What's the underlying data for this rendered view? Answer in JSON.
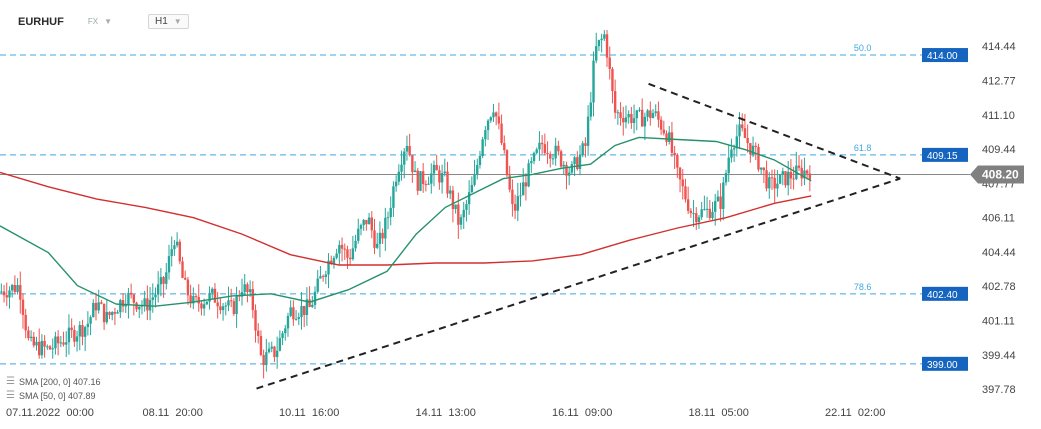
{
  "header": {
    "symbol": "EURHUF",
    "market": "FX",
    "timeframe": "H1"
  },
  "legend": {
    "sma200": "SMA [200, 0] 407.16",
    "sma50": "SMA [50, 0] 407.89"
  },
  "colors": {
    "bull": "#26a69a",
    "bear": "#ef5350",
    "sma200": "#d32f2f",
    "sma50": "#26926b",
    "fib": "#3fa9e0",
    "tag": "#1565c0",
    "current": "#808080"
  },
  "chart_data": {
    "type": "candlestick",
    "ylim": [
      397.0,
      415.8
    ],
    "y_ticks": [
      "414.44",
      "412.77",
      "411.10",
      "409.44",
      "407.77",
      "406.11",
      "404.44",
      "402.78",
      "401.11",
      "399.44",
      "397.78"
    ],
    "x_ticks": [
      "07.11.2022  00:00",
      "08.11  20:00",
      "10.11  16:00",
      "14.11  13:00",
      "16.11  09:00",
      "18.11  05:00",
      "22.11  02:00"
    ],
    "current_price": "408.20",
    "fib_levels": [
      {
        "ratio": "50.0",
        "value": 414.0,
        "label": "414.00"
      },
      {
        "ratio": "61.8",
        "value": 409.15,
        "label": "409.15"
      },
      {
        "ratio": "78.6",
        "value": 402.4,
        "label": "402.40"
      },
      {
        "ratio": "",
        "value": 399.0,
        "label": "399.00"
      }
    ],
    "triangle": {
      "lower": [
        [
          0.265,
          397.8
        ],
        [
          0.93,
          408.0
        ]
      ],
      "upper": [
        [
          0.67,
          412.6
        ],
        [
          0.93,
          408.0
        ]
      ]
    },
    "price_path": [
      [
        0.0,
        402.5
      ],
      [
        0.02,
        402.8
      ],
      [
        0.03,
        399.9
      ],
      [
        0.05,
        399.7
      ],
      [
        0.07,
        400.3
      ],
      [
        0.09,
        400.9
      ],
      [
        0.1,
        402.0
      ],
      [
        0.11,
        401.2
      ],
      [
        0.13,
        402.3
      ],
      [
        0.15,
        401.8
      ],
      [
        0.17,
        403.0
      ],
      [
        0.18,
        405.2
      ],
      [
        0.19,
        402.8
      ],
      [
        0.2,
        401.9
      ],
      [
        0.22,
        402.3
      ],
      [
        0.24,
        401.6
      ],
      [
        0.25,
        402.8
      ],
      [
        0.26,
        402.1
      ],
      [
        0.27,
        399.2
      ],
      [
        0.285,
        399.6
      ],
      [
        0.3,
        401.6
      ],
      [
        0.32,
        401.7
      ],
      [
        0.335,
        403.6
      ],
      [
        0.35,
        404.9
      ],
      [
        0.36,
        404.1
      ],
      [
        0.37,
        405.3
      ],
      [
        0.38,
        406.1
      ],
      [
        0.39,
        404.6
      ],
      [
        0.4,
        406.0
      ],
      [
        0.41,
        408.4
      ],
      [
        0.42,
        409.9
      ],
      [
        0.43,
        407.8
      ],
      [
        0.45,
        408.3
      ],
      [
        0.46,
        407.9
      ],
      [
        0.475,
        405.7
      ],
      [
        0.49,
        407.9
      ],
      [
        0.5,
        410.5
      ],
      [
        0.51,
        411.6
      ],
      [
        0.52,
        409.3
      ],
      [
        0.53,
        406.3
      ],
      [
        0.545,
        408.2
      ],
      [
        0.56,
        409.7
      ],
      [
        0.575,
        409.2
      ],
      [
        0.59,
        408.3
      ],
      [
        0.605,
        409.6
      ],
      [
        0.615,
        414.2
      ],
      [
        0.625,
        415.0
      ],
      [
        0.635,
        411.2
      ],
      [
        0.66,
        410.9
      ],
      [
        0.675,
        411.2
      ],
      [
        0.69,
        410.1
      ],
      [
        0.7,
        408.1
      ],
      [
        0.715,
        406.3
      ],
      [
        0.73,
        406.4
      ],
      [
        0.745,
        406.9
      ],
      [
        0.755,
        409.7
      ],
      [
        0.765,
        410.3
      ],
      [
        0.78,
        409.2
      ],
      [
        0.795,
        407.6
      ],
      [
        0.81,
        408.0
      ],
      [
        0.825,
        408.3
      ],
      [
        0.838,
        408.4
      ]
    ],
    "sma200": [
      [
        0.0,
        408.3
      ],
      [
        0.05,
        407.6
      ],
      [
        0.1,
        407.0
      ],
      [
        0.15,
        406.6
      ],
      [
        0.2,
        406.1
      ],
      [
        0.25,
        405.3
      ],
      [
        0.3,
        404.3
      ],
      [
        0.35,
        403.8
      ],
      [
        0.4,
        403.8
      ],
      [
        0.45,
        403.9
      ],
      [
        0.5,
        403.9
      ],
      [
        0.55,
        404.0
      ],
      [
        0.6,
        404.3
      ],
      [
        0.65,
        405.0
      ],
      [
        0.7,
        405.6
      ],
      [
        0.75,
        406.1
      ],
      [
        0.8,
        406.8
      ],
      [
        0.838,
        407.16
      ]
    ],
    "sma50": [
      [
        0.0,
        405.7
      ],
      [
        0.05,
        404.4
      ],
      [
        0.08,
        402.8
      ],
      [
        0.12,
        401.9
      ],
      [
        0.16,
        401.8
      ],
      [
        0.2,
        402.0
      ],
      [
        0.24,
        402.3
      ],
      [
        0.28,
        402.4
      ],
      [
        0.32,
        402.0
      ],
      [
        0.36,
        402.6
      ],
      [
        0.4,
        403.5
      ],
      [
        0.43,
        405.3
      ],
      [
        0.46,
        406.6
      ],
      [
        0.49,
        407.3
      ],
      [
        0.52,
        408.0
      ],
      [
        0.55,
        408.2
      ],
      [
        0.58,
        408.5
      ],
      [
        0.61,
        408.7
      ],
      [
        0.635,
        409.6
      ],
      [
        0.66,
        410.0
      ],
      [
        0.7,
        409.9
      ],
      [
        0.74,
        409.8
      ],
      [
        0.77,
        409.4
      ],
      [
        0.8,
        408.9
      ],
      [
        0.838,
        407.89
      ]
    ]
  }
}
